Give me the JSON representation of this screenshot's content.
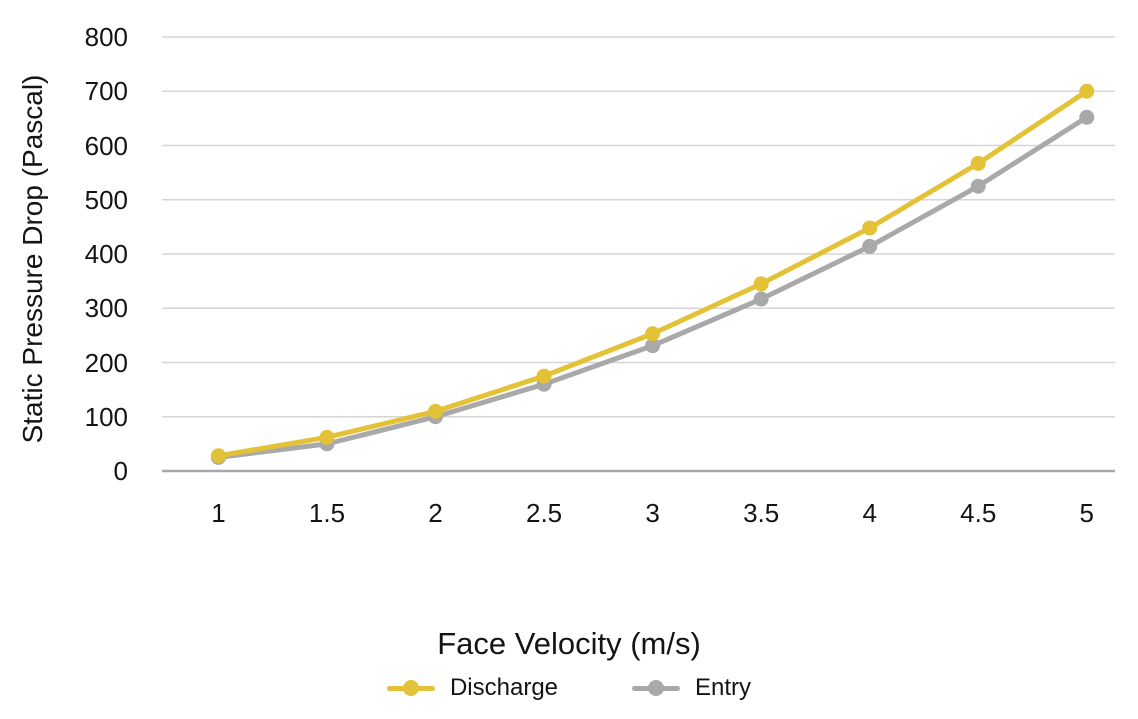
{
  "chart_data": {
    "type": "line",
    "title": "",
    "xlabel": "Face Velocity (m/s)",
    "ylabel": "Static Pressure Drop (Pascal)",
    "x": [
      1,
      1.5,
      2,
      2.5,
      3,
      3.5,
      4,
      4.5,
      5
    ],
    "x_tick_labels": [
      "1",
      "1.5",
      "2",
      "2.5",
      "3",
      "3.5",
      "4",
      "4.5",
      "5"
    ],
    "y_ticks": [
      0,
      100,
      200,
      300,
      400,
      500,
      600,
      700,
      800
    ],
    "ylim": [
      0,
      800
    ],
    "xlim": [
      0.74,
      5.13
    ],
    "grid": "horizontal-only",
    "legend_position": "bottom-center",
    "series": [
      {
        "name": "Discharge",
        "color": "#E4C237",
        "values": [
          28,
          62,
          110,
          175,
          253,
          345,
          448,
          567,
          700
        ]
      },
      {
        "name": "Entry",
        "color": "#A9A9A9",
        "values": [
          25,
          50,
          100,
          160,
          231,
          317,
          414,
          525,
          652
        ]
      }
    ],
    "colors": {
      "gridline": "#D6D6D6",
      "axis_line": "#A8A8A8",
      "text": "#141414",
      "background": "#FFFFFF"
    }
  }
}
